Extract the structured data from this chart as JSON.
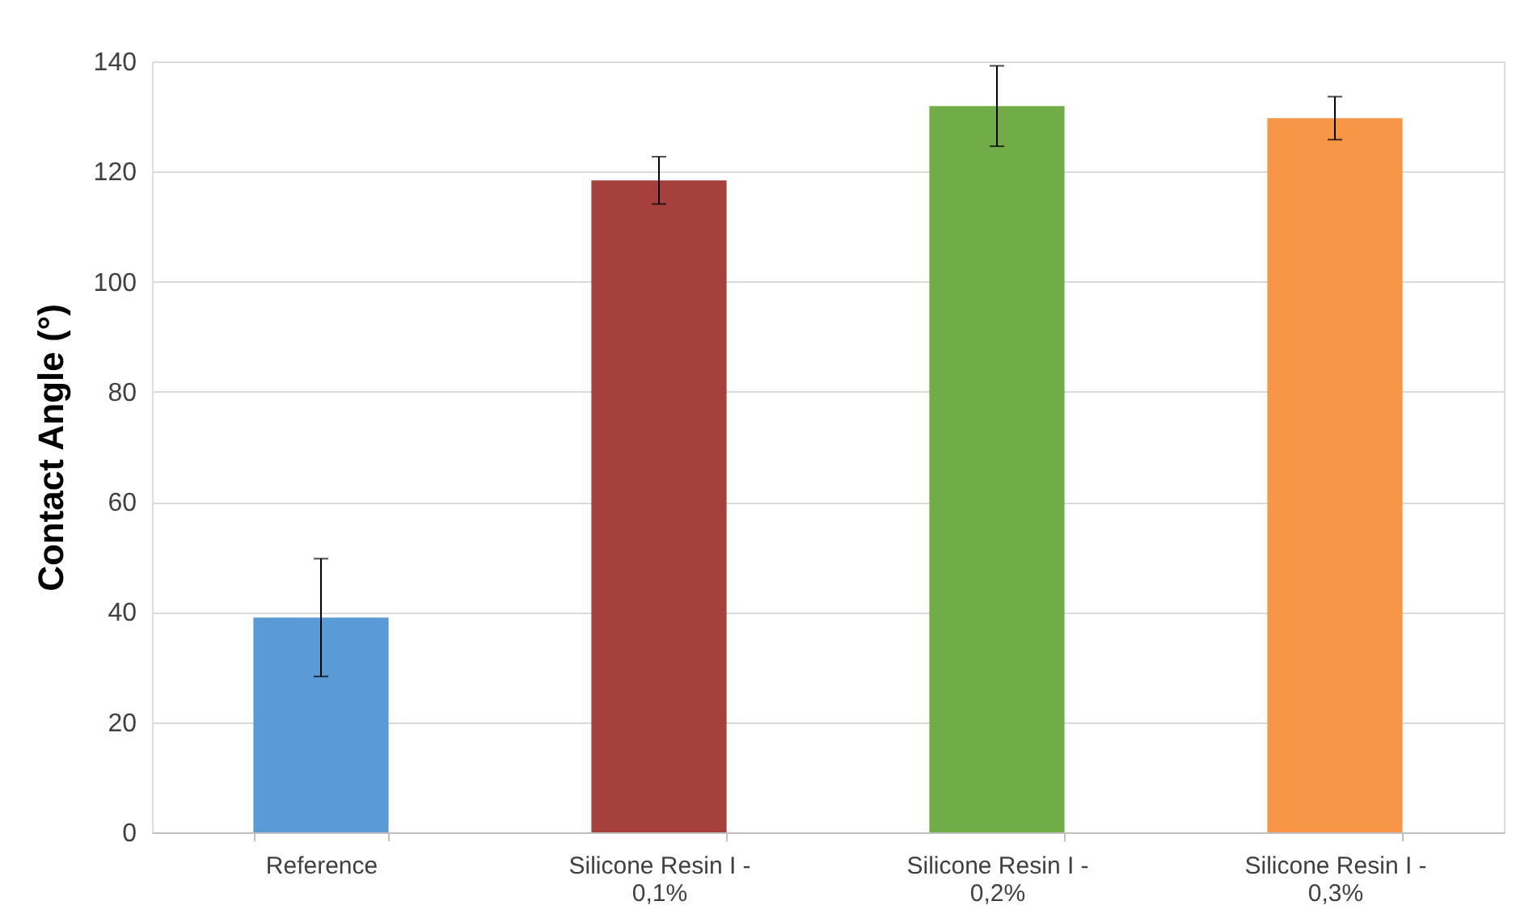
{
  "chart_data": {
    "type": "bar",
    "ylabel": "Contact Angle (°)",
    "categories": [
      "Reference",
      "Silicone Resin I -\n0,1%",
      "Silicone Resin I -\n0,2%",
      "Silicone Resin I -\n0,3%"
    ],
    "values": [
      39,
      118.4,
      131.9,
      129.7
    ],
    "errors": [
      10.7,
      4.3,
      7.3,
      3.9
    ],
    "colors": [
      "#5b9bd5",
      "#a5403d",
      "#70ad47",
      "#f79646"
    ],
    "ylim": [
      0,
      140
    ],
    "yticks": [
      0,
      20,
      40,
      60,
      80,
      100,
      120,
      140
    ],
    "grid": "y",
    "legend": false
  }
}
